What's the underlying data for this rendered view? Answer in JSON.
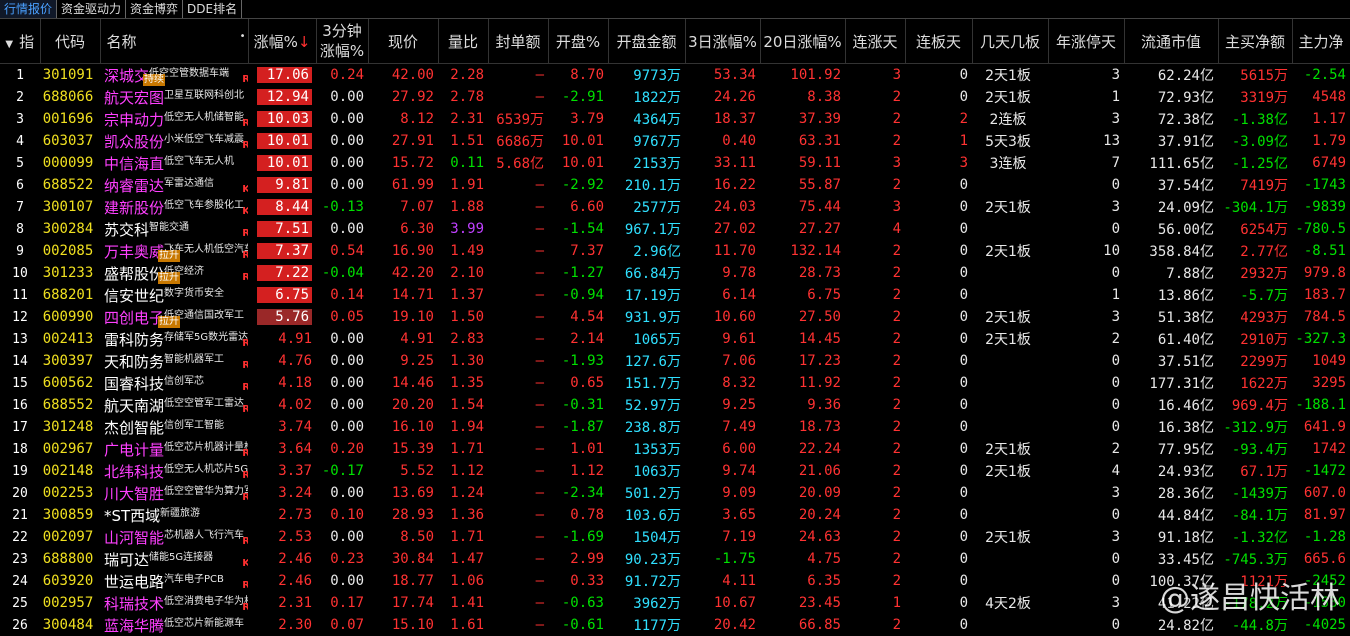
{
  "tabs": [
    "行情报价",
    "资金驱动力",
    "资金博弈",
    "DDE排名"
  ],
  "columns": [
    "指",
    "代码",
    "名称",
    "涨幅%",
    [
      "3分钟",
      "涨幅%"
    ],
    "现价",
    "量比",
    "封单额",
    "开盘%",
    "开盘金额",
    "3日涨幅%",
    "20日涨幅%",
    "连涨天",
    "连板天",
    "几天几板",
    "年涨停天",
    "流通市值",
    "主买净额",
    "主力净"
  ],
  "rows": [
    {
      "no": 1,
      "code": "301091",
      "name": "深城交",
      "name_color": "#ff40ff",
      "tag": "低空空管数据车端",
      "badge": "持续",
      "flag": "R",
      "zf_bg": "#d42020",
      "cells": [
        "17.06",
        "0.24",
        "42.00",
        "2.28",
        "–",
        "8.70",
        "9773万",
        "53.34",
        "101.92",
        "3",
        "0",
        "2天1板",
        "3",
        "62.24亿",
        "5615万",
        "-2.54"
      ]
    },
    {
      "no": 2,
      "code": "688066",
      "name": "航天宏图",
      "name_color": "#ff40ff",
      "tag": "卫星互联网科创北",
      "zf_bg": "#d42020",
      "cells": [
        "12.94",
        "0.00",
        "27.92",
        "2.78",
        "–",
        "-2.91",
        "1822万",
        "24.26",
        "8.38",
        "2",
        "0",
        "2天1板",
        "1",
        "72.93亿",
        "3319万",
        "4548"
      ]
    },
    {
      "no": 3,
      "code": "001696",
      "name": "宗申动力",
      "name_color": "#ff40ff",
      "tag": "低空无人机储智能",
      "flag": "R",
      "zf_bg": "#d42020",
      "cells": [
        "10.03",
        "0.00",
        "8.12",
        "2.31",
        "6539万",
        "3.79",
        "4364万",
        "18.37",
        "37.39",
        "2",
        "2",
        "2连板",
        "3",
        "72.38亿",
        "-1.38亿",
        "1.17"
      ]
    },
    {
      "no": 4,
      "code": "603037",
      "name": "凯众股份",
      "name_color": "#ff40ff",
      "tag": "小米低空飞车减震",
      "flag": "R",
      "zf_bg": "#d42020",
      "cells": [
        "10.01",
        "0.00",
        "27.91",
        "1.51",
        "6686万",
        "10.01",
        "9767万",
        "0.40",
        "63.31",
        "2",
        "1",
        "5天3板",
        "13",
        "37.91亿",
        "-3.09亿",
        "1.79"
      ]
    },
    {
      "no": 5,
      "code": "000099",
      "name": "中信海直",
      "name_color": "#ff40ff",
      "tag": "低空飞车无人机",
      "zf_bg": "#d42020",
      "cells": [
        "10.01",
        "0.00",
        "15.72",
        "0.11",
        "5.68亿",
        "10.01",
        "2153万",
        "33.11",
        "59.11",
        "3",
        "3",
        "3连板",
        "7",
        "111.65亿",
        "-1.25亿",
        "6749"
      ]
    },
    {
      "no": 6,
      "code": "688522",
      "name": "纳睿雷达",
      "name_color": "#ff40ff",
      "tag": "军雷达通信",
      "flag": "K",
      "zf_bg": "#d42020",
      "cells": [
        "9.81",
        "0.00",
        "61.99",
        "1.91",
        "–",
        "-2.92",
        "210.1万",
        "16.22",
        "55.87",
        "2",
        "0",
        null,
        "0",
        "37.54亿",
        "7419万",
        "-1743"
      ]
    },
    {
      "no": 7,
      "code": "300107",
      "name": "建新股份",
      "name_color": "#ff40ff",
      "tag": "低空飞车参股化工",
      "flag": "K",
      "zf_bg": "#d42020",
      "cells": [
        "8.44",
        "-0.13",
        "7.07",
        "1.88",
        "–",
        "6.60",
        "2577万",
        "24.03",
        "75.44",
        "3",
        "0",
        "2天1板",
        "3",
        "24.09亿",
        "-304.1万",
        "-9839"
      ]
    },
    {
      "no": 8,
      "code": "300284",
      "name": "苏交科",
      "name_color": "#ffffff",
      "tag": "智能交通",
      "flag": "R",
      "zf_bg": "#d42020",
      "cells": [
        "7.51",
        "0.00",
        "6.30",
        "3.99",
        "–",
        "-1.54",
        "967.1万",
        "27.02",
        "27.27",
        "4",
        "0",
        null,
        "0",
        "56.00亿",
        "6254万",
        "-780.5"
      ]
    },
    {
      "no": 9,
      "code": "002085",
      "name": "万丰奥威",
      "name_color": "#ff40ff",
      "tag": "飞车无人机低空汽车",
      "badge": "拉升",
      "flag": "R",
      "zf_bg": "#d42020",
      "cells": [
        "7.37",
        "0.54",
        "16.90",
        "1.49",
        "–",
        "7.37",
        "2.96亿",
        "11.70",
        "132.14",
        "2",
        "0",
        "2天1板",
        "10",
        "358.84亿",
        "2.77亿",
        "-8.51"
      ]
    },
    {
      "no": 10,
      "code": "301233",
      "name": "盛帮股份",
      "name_color": "#ffffff",
      "tag": "低空经济",
      "badge": "拉升",
      "flag": "R",
      "zf_bg": "#d42020",
      "cells": [
        "7.22",
        "-0.04",
        "42.20",
        "2.10",
        "–",
        "-1.27",
        "66.84万",
        "9.78",
        "28.73",
        "2",
        "0",
        null,
        "0",
        "7.88亿",
        "2932万",
        "979.8"
      ]
    },
    {
      "no": 11,
      "code": "688201",
      "name": "信安世纪",
      "name_color": "#ffffff",
      "tag": "数字货币安全",
      "zf_bg": "#d42020",
      "cells": [
        "6.75",
        "0.14",
        "14.71",
        "1.37",
        "–",
        "-0.94",
        "17.19万",
        "6.14",
        "6.75",
        "2",
        "0",
        null,
        "1",
        "13.86亿",
        "-5.7万",
        "183.7"
      ]
    },
    {
      "no": 12,
      "code": "600990",
      "name": "四创电子",
      "name_color": "#ff40ff",
      "tag": "低空通信国改军工",
      "badge": "拉升",
      "zf_bg": "#9a2828",
      "cells": [
        "5.76",
        "0.05",
        "19.10",
        "1.50",
        "–",
        "4.54",
        "931.9万",
        "10.60",
        "27.50",
        "2",
        "0",
        "2天1板",
        "3",
        "51.38亿",
        "4293万",
        "784.5"
      ]
    },
    {
      "no": 13,
      "code": "002413",
      "name": "雷科防务",
      "name_color": "#ffffff",
      "tag": "存储军5G数光雷达",
      "flag": "R",
      "cells": [
        "4.91",
        "0.00",
        "4.91",
        "2.83",
        "–",
        "2.14",
        "1065万",
        "9.61",
        "14.45",
        "2",
        "0",
        "2天1板",
        "2",
        "61.40亿",
        "2910万",
        "-327.3"
      ]
    },
    {
      "no": 14,
      "code": "300397",
      "name": "天和防务",
      "name_color": "#ffffff",
      "tag": "智能机器军工",
      "flag": "R",
      "cells": [
        "4.76",
        "0.00",
        "9.25",
        "1.30",
        "–",
        "-1.93",
        "127.6万",
        "7.06",
        "17.23",
        "2",
        "0",
        null,
        "0",
        "37.51亿",
        "2299万",
        "1049"
      ]
    },
    {
      "no": 15,
      "code": "600562",
      "name": "国睿科技",
      "name_color": "#ffffff",
      "tag": "信创军芯",
      "flag": "R",
      "cells": [
        "4.18",
        "0.00",
        "14.46",
        "1.35",
        "–",
        "0.65",
        "151.7万",
        "8.32",
        "11.92",
        "2",
        "0",
        null,
        "0",
        "177.31亿",
        "1622万",
        "3295"
      ]
    },
    {
      "no": 16,
      "code": "688552",
      "name": "航天南湖",
      "name_color": "#ffffff",
      "tag": "低空空管军工雷达",
      "flag": "R",
      "cells": [
        "4.02",
        "0.00",
        "20.20",
        "1.54",
        "–",
        "-0.31",
        "52.97万",
        "9.25",
        "9.36",
        "2",
        "0",
        null,
        "0",
        "16.46亿",
        "969.4万",
        "-188.1"
      ]
    },
    {
      "no": 17,
      "code": "301248",
      "name": "杰创智能",
      "name_color": "#ffffff",
      "tag": "信创军工智能",
      "cells": [
        "3.74",
        "0.00",
        "16.10",
        "1.94",
        "–",
        "-1.87",
        "238.8万",
        "7.49",
        "18.73",
        "2",
        "0",
        null,
        "0",
        "16.38亿",
        "-312.9万",
        "641.9"
      ]
    },
    {
      "no": 18,
      "code": "002967",
      "name": "广电计量",
      "name_color": "#ff40ff",
      "tag": "低空芯片机器计量检测",
      "flag": "R",
      "cells": [
        "3.64",
        "0.20",
        "15.39",
        "1.71",
        "–",
        "1.01",
        "1353万",
        "6.00",
        "22.24",
        "2",
        "0",
        "2天1板",
        "2",
        "77.95亿",
        "-93.4万",
        "1742"
      ]
    },
    {
      "no": 19,
      "code": "002148",
      "name": "北纬科技",
      "name_color": "#ff40ff",
      "tag": "低空无人机芯片5G",
      "flag": "R",
      "cells": [
        "3.37",
        "-0.17",
        "5.52",
        "1.12",
        "–",
        "1.12",
        "1063万",
        "9.74",
        "21.06",
        "2",
        "0",
        "2天1板",
        "4",
        "24.93亿",
        "67.1万",
        "-1472"
      ]
    },
    {
      "no": 20,
      "code": "002253",
      "name": "川大智胜",
      "name_color": "#ff40ff",
      "tag": "低空空管华为算力军工",
      "flag": "R",
      "cells": [
        "3.24",
        "0.00",
        "13.69",
        "1.24",
        "–",
        "-2.34",
        "501.2万",
        "9.09",
        "20.09",
        "2",
        "0",
        null,
        "3",
        "28.36亿",
        "-1439万",
        "607.0"
      ]
    },
    {
      "no": 21,
      "code": "300859",
      "name": "*ST西域",
      "name_color": "#ffffff",
      "tag": "新疆旅游",
      "cells": [
        "2.73",
        "0.10",
        "28.93",
        "1.36",
        "–",
        "0.78",
        "103.6万",
        "3.65",
        "20.24",
        "2",
        "0",
        null,
        "0",
        "44.84亿",
        "-84.1万",
        "81.97"
      ]
    },
    {
      "no": 22,
      "code": "002097",
      "name": "山河智能",
      "name_color": "#ff40ff",
      "tag": "芯机器人飞行汽车",
      "flag": "R",
      "cells": [
        "2.53",
        "0.00",
        "8.50",
        "1.71",
        "–",
        "-1.69",
        "1504万",
        "7.19",
        "24.63",
        "2",
        "0",
        "2天1板",
        "3",
        "91.18亿",
        "-1.32亿",
        "-1.28"
      ]
    },
    {
      "no": 23,
      "code": "688800",
      "name": "瑞可达",
      "name_color": "#ffffff",
      "tag": "储能5G连接器",
      "flag": "K",
      "cells": [
        "2.46",
        "0.23",
        "30.84",
        "1.47",
        "–",
        "2.99",
        "90.23万",
        "-1.75",
        "4.75",
        "2",
        "0",
        null,
        "0",
        "33.45亿",
        "-745.3万",
        "665.6"
      ]
    },
    {
      "no": 24,
      "code": "603920",
      "name": "世运电路",
      "name_color": "#ffffff",
      "tag": "汽车电子PCB",
      "flag": "R",
      "cells": [
        "2.46",
        "0.00",
        "18.77",
        "1.06",
        "–",
        "0.33",
        "91.72万",
        "4.11",
        "6.35",
        "2",
        "0",
        null,
        "0",
        "100.37亿",
        "1121万",
        "-2452"
      ]
    },
    {
      "no": 25,
      "code": "002957",
      "name": "科瑞技术",
      "name_color": "#ff40ff",
      "tag": "低空消费电子华为机器",
      "flag": "R",
      "cells": [
        "2.31",
        "0.17",
        "17.74",
        "1.41",
        "–",
        "-0.63",
        "3962万",
        "10.67",
        "23.45",
        "1",
        "0",
        "4天2板",
        "3",
        "41.22亿",
        "-178.2万",
        "-1530"
      ]
    },
    {
      "no": 26,
      "code": "300484",
      "name": "蓝海华腾",
      "name_color": "#ff40ff",
      "tag": "低空芯片新能源车",
      "cells": [
        "2.30",
        "0.07",
        "15.10",
        "1.61",
        "–",
        "-0.61",
        "1177万",
        "20.42",
        "66.85",
        "2",
        "0",
        null,
        "0",
        "24.82亿",
        "-44.8万",
        "-4025"
      ]
    }
  ],
  "watermark": "@遂昌快活林"
}
